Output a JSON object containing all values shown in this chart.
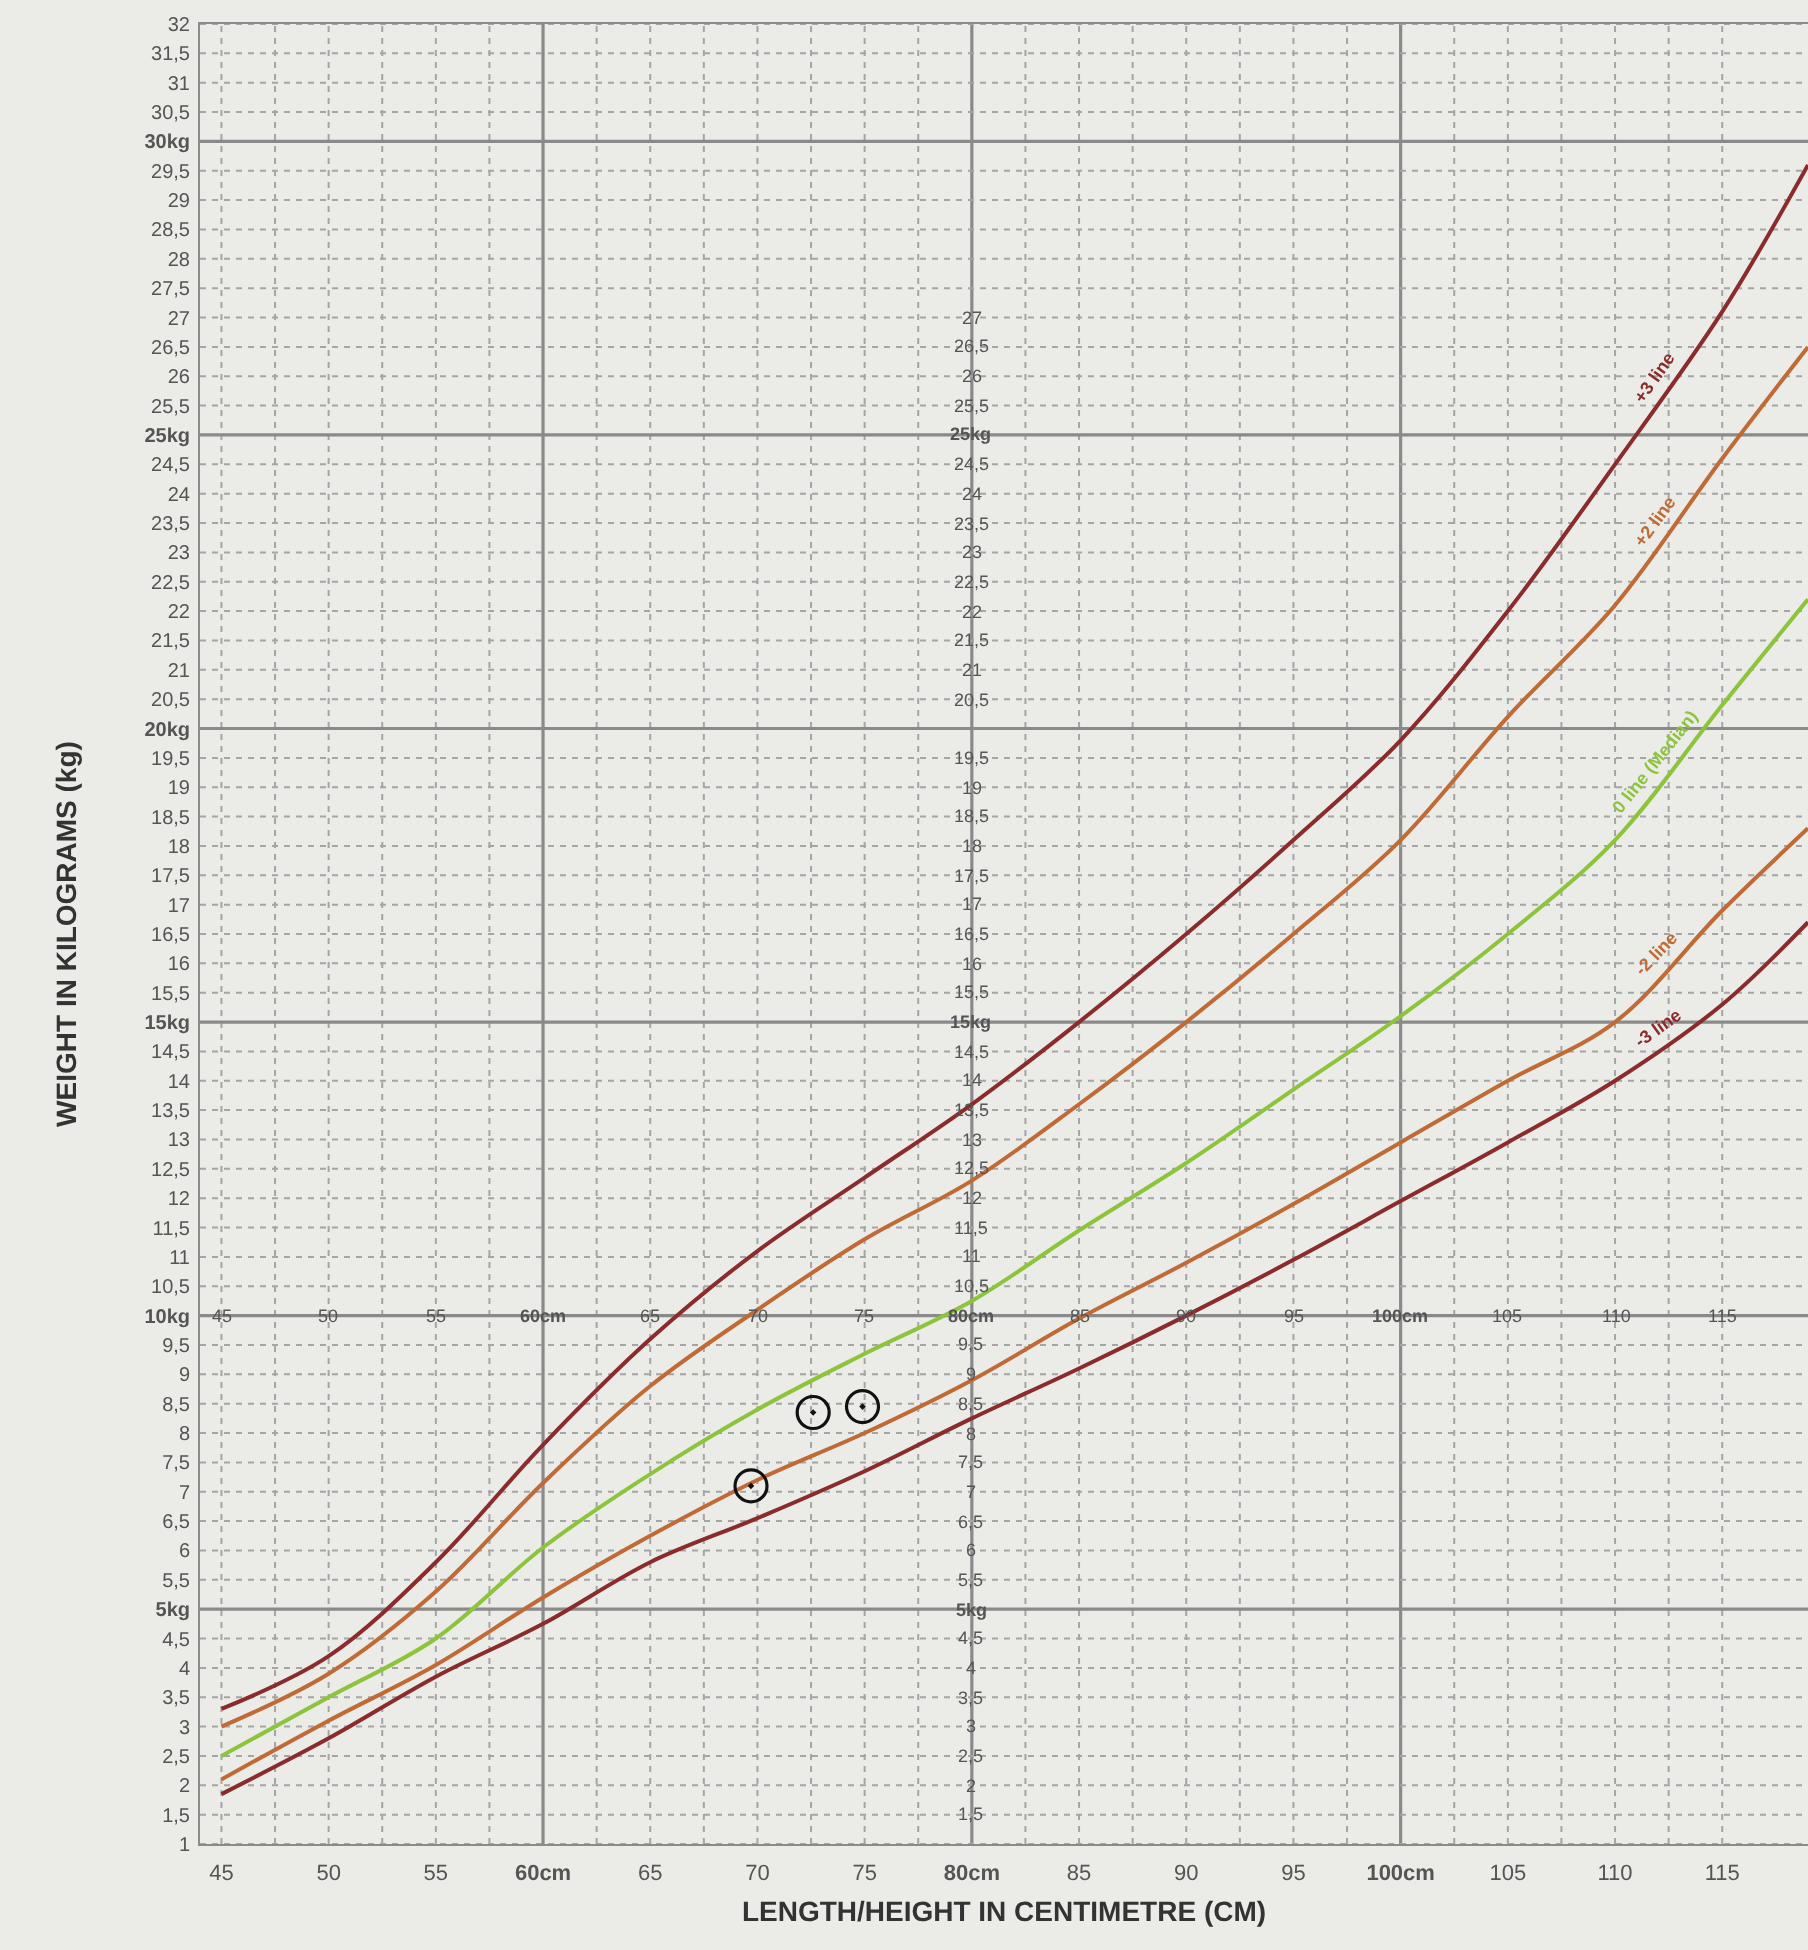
{
  "chart_data": {
    "type": "line",
    "xlabel": "LENGTH/HEIGHT IN CENTIMETRE (CM)",
    "ylabel": "WEIGHT IN KILOGRAMS (kg)",
    "x": [
      45,
      50,
      55,
      60,
      65,
      70,
      75,
      80,
      85,
      90,
      95,
      100,
      105,
      110,
      115,
      119
    ],
    "series": [
      {
        "name": "+3 line",
        "color": "#8b2b2b",
        "values": [
          3.3,
          4.2,
          5.8,
          7.8,
          9.6,
          11.1,
          12.35,
          13.6,
          15.0,
          16.5,
          18.1,
          19.8,
          22.0,
          24.5,
          27.1,
          29.6
        ]
      },
      {
        "name": "+2 line",
        "color": "#c06a35",
        "values": [
          3.0,
          3.9,
          5.3,
          7.15,
          8.8,
          10.1,
          11.3,
          12.3,
          13.6,
          15.0,
          16.5,
          18.1,
          20.2,
          22.1,
          24.6,
          26.5
        ]
      },
      {
        "name": "0 line (Median)",
        "color": "#8cc43c",
        "values": [
          2.5,
          3.5,
          4.5,
          6.05,
          7.3,
          8.4,
          9.35,
          10.25,
          11.45,
          12.6,
          13.85,
          15.1,
          16.5,
          18.1,
          20.4,
          22.2
        ]
      },
      {
        "name": "-2 line",
        "color": "#c06a35",
        "values": [
          2.1,
          3.1,
          4.05,
          5.2,
          6.25,
          7.2,
          8.0,
          8.9,
          9.95,
          10.9,
          11.9,
          12.95,
          14.0,
          15.0,
          16.9,
          18.3
        ]
      },
      {
        "name": "-3 line",
        "color": "#8b2b2b",
        "values": [
          1.85,
          2.8,
          3.85,
          4.75,
          5.8,
          6.55,
          7.35,
          8.25,
          9.1,
          10.0,
          10.95,
          11.95,
          12.95,
          14.0,
          15.3,
          16.7
        ]
      },
      {
        "type": "scatter",
        "color": "#111111",
        "marker": "circle",
        "x": [
          69.7,
          72.6,
          74.9
        ],
        "values": [
          7.1,
          8.35,
          8.45
        ]
      }
    ],
    "xlim": [
      44,
      119
    ],
    "ylim": [
      1,
      32
    ],
    "xticks": [
      45,
      50,
      55,
      {
        "value": 60,
        "label": "60cm"
      },
      65,
      70,
      75,
      {
        "value": 80,
        "label": "80cm"
      },
      85,
      90,
      95,
      {
        "value": 100,
        "label": "100cm"
      },
      105,
      110,
      115
    ],
    "yticks": [
      1,
      {
        "value": 1.5,
        "label": "1,5"
      },
      2,
      {
        "value": 2.5,
        "label": "2,5"
      },
      3,
      {
        "value": 3.5,
        "label": "3,5"
      },
      4,
      {
        "value": 4.5,
        "label": "4,5"
      },
      {
        "value": 5,
        "label": "5kg"
      },
      {
        "value": 5.5,
        "label": "5,5"
      },
      6,
      {
        "value": 6.5,
        "label": "6,5"
      },
      7,
      {
        "value": 7.5,
        "label": "7,5"
      },
      8,
      {
        "value": 8.5,
        "label": "8,5"
      },
      9,
      {
        "value": 9.5,
        "label": "9,5"
      },
      {
        "value": 10,
        "label": "10kg"
      },
      {
        "value": 10.5,
        "label": "10,5"
      },
      11,
      {
        "value": 11.5,
        "label": "11,5"
      },
      12,
      {
        "value": 12.5,
        "label": "12,5"
      },
      13,
      {
        "value": 13.5,
        "label": "13,5"
      },
      14,
      {
        "value": 14.5,
        "label": "14,5"
      },
      {
        "value": 15,
        "label": "15kg"
      },
      {
        "value": 15.5,
        "label": "15,5"
      },
      16,
      {
        "value": 16.5,
        "label": "16,5"
      },
      17,
      {
        "value": 17.5,
        "label": "17,5"
      },
      18,
      {
        "value": 18.5,
        "label": "18,5"
      },
      19,
      {
        "value": 19.5,
        "label": "19,5"
      },
      {
        "value": 20,
        "label": "20kg"
      },
      {
        "value": 20.5,
        "label": "20,5"
      },
      21,
      {
        "value": 21.5,
        "label": "21,5"
      },
      22,
      {
        "value": 22.5,
        "label": "22,5"
      },
      23,
      {
        "value": 23.5,
        "label": "23,5"
      },
      24,
      {
        "value": 24.5,
        "label": "24,5"
      },
      {
        "value": 25,
        "label": "25kg"
      },
      {
        "value": 25.5,
        "label": "25,5"
      },
      26,
      {
        "value": 26.5,
        "label": "26,5"
      },
      27,
      {
        "value": 27.5,
        "label": "27,5"
      },
      28,
      {
        "value": 28.5,
        "label": "28,5"
      },
      29,
      {
        "value": 29.5,
        "label": "29,5"
      },
      {
        "value": 30,
        "label": "30kg"
      },
      {
        "value": 30.5,
        "label": "30,5"
      },
      31,
      {
        "value": 31.5,
        "label": "31,5"
      },
      32
    ],
    "y2lim": [
      1,
      32
    ],
    "y2ticks": [
      {
        "value": 1.5,
        "label": "1,5"
      },
      2,
      {
        "value": 2.5,
        "label": "2,5"
      },
      3,
      {
        "value": 3.5,
        "label": "3,5"
      },
      4,
      {
        "value": 4.5,
        "label": "4,5"
      },
      {
        "value": 5,
        "label": "5kg"
      },
      {
        "value": 5.5,
        "label": "5,5"
      },
      6,
      {
        "value": 6.5,
        "label": "6,5"
      },
      7,
      {
        "value": 7.5,
        "label": "7,5"
      },
      8,
      {
        "value": 8.5,
        "label": "8,5"
      },
      9,
      {
        "value": 9.5,
        "label": "9,5"
      },
      {
        "value": 10,
        "label": null
      },
      {
        "value": 10.5,
        "label": "10,5"
      },
      11,
      {
        "value": 11.5,
        "label": "11,5"
      },
      12,
      {
        "value": 12.5,
        "label": "12,5"
      },
      13,
      {
        "value": 13.5,
        "label": "13,5"
      },
      14,
      {
        "value": 14.5,
        "label": "14,5"
      },
      {
        "value": 15,
        "label": "15kg"
      },
      {
        "value": 15.5,
        "label": "15,5"
      },
      16,
      {
        "value": 16.5,
        "label": "16,5"
      },
      17,
      {
        "value": 17.5,
        "label": "17,5"
      },
      18,
      {
        "value": 18.5,
        "label": "18,5"
      },
      19,
      {
        "value": 19.5,
        "label": "19,5"
      },
      {
        "value": 20,
        "label": null
      },
      {
        "value": 20.5,
        "label": "20,5"
      },
      21,
      {
        "value": 21.5,
        "label": "21,5"
      },
      22,
      {
        "value": 22.5,
        "label": "22,5"
      },
      23,
      {
        "value": 23.5,
        "label": "23,5"
      },
      24,
      {
        "value": 24.5,
        "label": "24,5"
      },
      {
        "value": 25,
        "label": "25kg"
      },
      {
        "value": 25.5,
        "label": "25,5"
      },
      26,
      {
        "value": 26.5,
        "label": "26,5"
      },
      27
    ],
    "x2lim": [
      44,
      119
    ],
    "x2ticks": [
      45,
      50,
      55,
      {
        "value": 60,
        "label": "60cm"
      },
      65,
      70,
      75,
      {
        "value": 80,
        "label": "80cm"
      },
      85,
      90,
      95,
      {
        "value": 100,
        "label": "100cm"
      },
      105,
      110,
      115
    ],
    "grid": true,
    "line_style": "solid"
  }
}
